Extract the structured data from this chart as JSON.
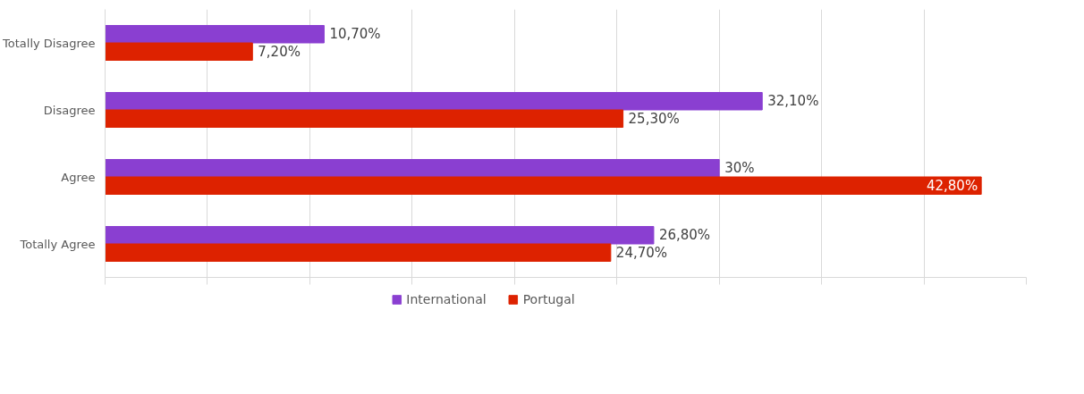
{
  "chart_data": {
    "type": "bar",
    "orientation": "horizontal",
    "categories": [
      "Totally Disagree",
      "Disagree",
      "Agree",
      "Totally Agree"
    ],
    "series": [
      {
        "name": "International",
        "color": "#8a3fd1",
        "values": [
          10.7,
          32.1,
          30,
          26.8
        ],
        "value_labels": [
          "10,70%",
          "32,10%",
          "30%",
          "26,80%"
        ]
      },
      {
        "name": "Portugal",
        "color": "#dd2200",
        "values": [
          7.2,
          25.3,
          42.8,
          24.7
        ],
        "value_labels": [
          "7,20%",
          "25,30%",
          "42,80%",
          "24,70%"
        ]
      }
    ],
    "xlim": [
      0,
      45
    ],
    "xticks": [
      {
        "value": 0,
        "label": null
      },
      {
        "value": 5,
        "label": null
      },
      {
        "value": 10,
        "label": null
      },
      {
        "value": 15,
        "label": null
      },
      {
        "value": 20,
        "label": null
      },
      {
        "value": 25,
        "label": null
      },
      {
        "value": 30,
        "label": null
      },
      {
        "value": 35,
        "label": null
      },
      {
        "value": 40,
        "label": null
      },
      {
        "value": 45,
        "label": null
      }
    ],
    "tick_labels": "y",
    "grid": "x",
    "legend": "bottom"
  }
}
